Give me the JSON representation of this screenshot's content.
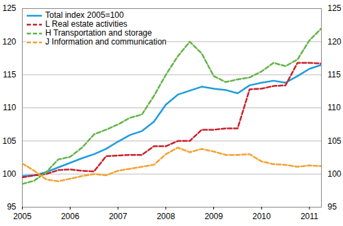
{
  "chart_data": {
    "type": "line",
    "x": [
      2005,
      2005.25,
      2005.5,
      2005.75,
      2006,
      2006.25,
      2006.5,
      2006.75,
      2007,
      2007.25,
      2007.5,
      2007.75,
      2008,
      2008.25,
      2008.5,
      2008.75,
      2009,
      2009.25,
      2009.5,
      2009.75,
      2010,
      2010.25,
      2010.5,
      2010.75,
      2011,
      2011.25
    ],
    "series": [
      {
        "name": "Total index 2005=100",
        "color": "#1f9bde",
        "line_style": "solid",
        "values": [
          99.7,
          99.8,
          100.3,
          101.0,
          101.7,
          102.4,
          103.0,
          103.8,
          104.9,
          105.9,
          106.5,
          107.9,
          110.5,
          112.0,
          112.6,
          113.2,
          112.9,
          112.7,
          112.2,
          113.4,
          113.8,
          114.1,
          113.8,
          114.8,
          115.9,
          116.5
        ]
      },
      {
        "name": "L Real estate activities",
        "color": "#c8202b",
        "line_style": "dashed",
        "values": [
          99.5,
          99.8,
          100.0,
          100.6,
          100.7,
          100.5,
          100.4,
          102.7,
          102.8,
          102.9,
          102.9,
          104.2,
          104.2,
          105.0,
          105.0,
          106.7,
          106.7,
          106.9,
          106.9,
          112.8,
          112.9,
          113.3,
          113.4,
          116.8,
          116.8,
          116.7
        ]
      },
      {
        "name": "H Transportation and storage",
        "color": "#62b446",
        "line_style": "dashed",
        "values": [
          98.5,
          99.0,
          100.3,
          102.2,
          102.6,
          104.0,
          106.0,
          106.7,
          107.5,
          108.5,
          109.0,
          111.8,
          115.0,
          117.8,
          120.0,
          118.2,
          114.8,
          113.9,
          114.3,
          114.6,
          115.5,
          116.8,
          116.3,
          117.3,
          120.2,
          122.0
        ]
      },
      {
        "name": "J Information and communication",
        "color": "#f5a030",
        "line_style": "dashed",
        "values": [
          101.6,
          100.5,
          99.2,
          98.9,
          99.3,
          99.7,
          100.0,
          99.8,
          100.5,
          100.8,
          101.1,
          101.4,
          103.0,
          104.0,
          103.3,
          103.8,
          103.4,
          102.9,
          102.9,
          103.0,
          101.9,
          101.5,
          101.4,
          101.1,
          101.3,
          101.2
        ]
      }
    ],
    "xlim": [
      2005,
      2011.25
    ],
    "xticks": [
      2005,
      2006,
      2007,
      2008,
      2009,
      2010,
      2011
    ],
    "ylim": [
      95,
      125
    ],
    "yticks": [
      95,
      100,
      105,
      110,
      115,
      120,
      125
    ],
    "grid": true,
    "legend": "upper left"
  }
}
